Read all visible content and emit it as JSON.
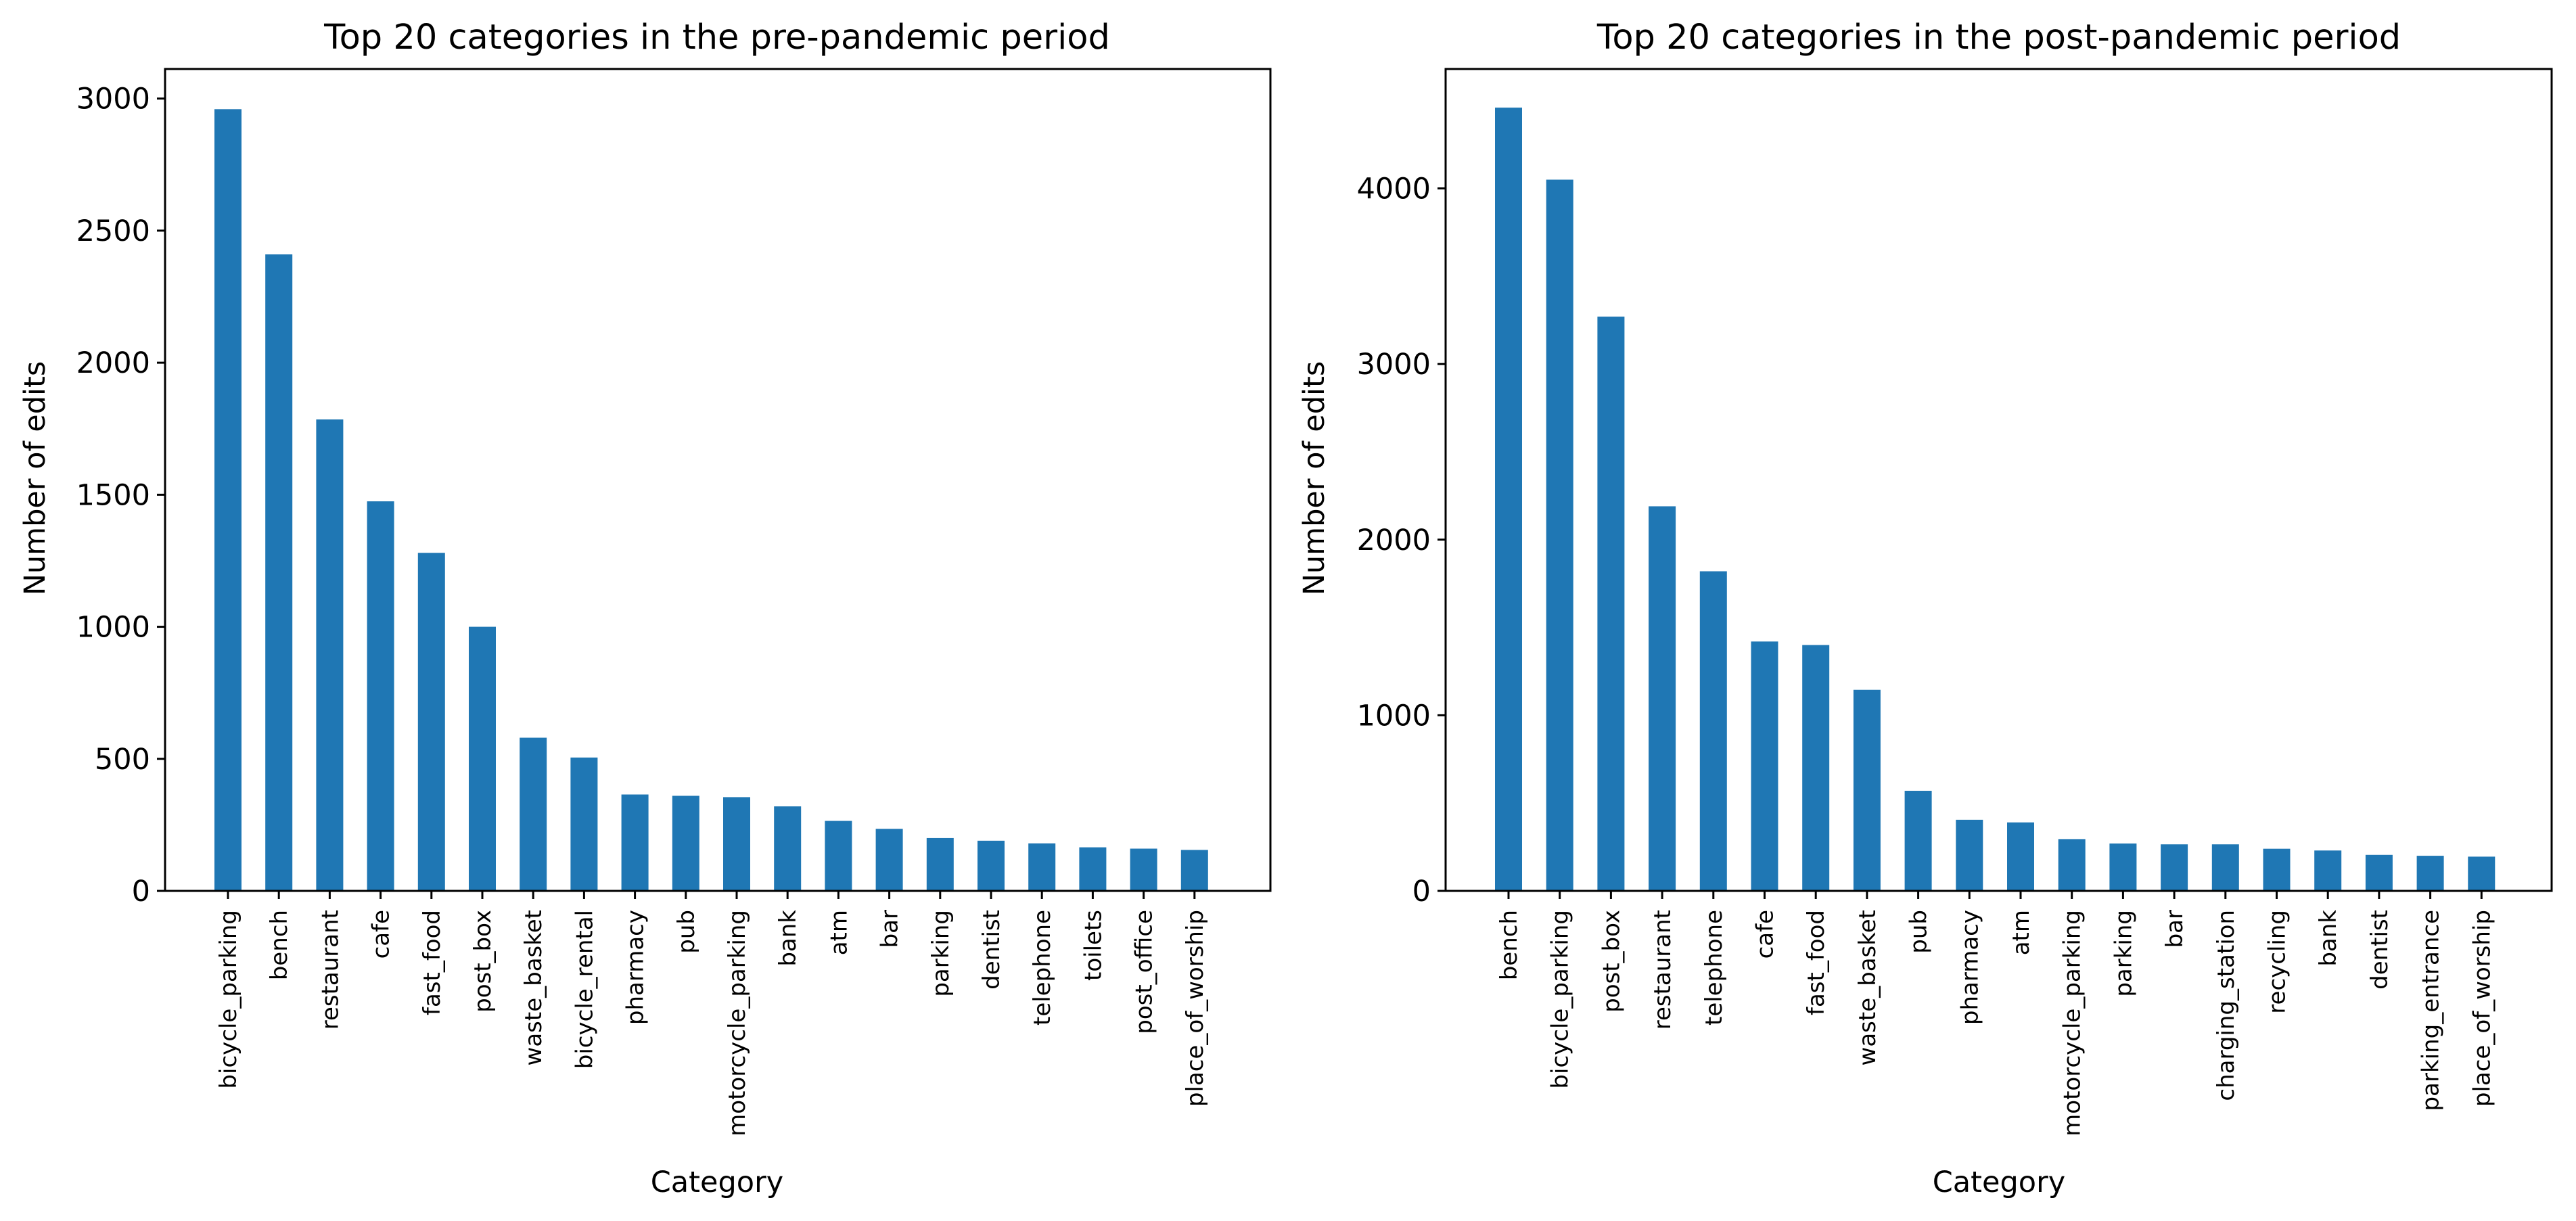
{
  "chart_data": [
    {
      "type": "bar",
      "title": "Top 20 categories in the pre-pandemic period",
      "xlabel": "Category",
      "ylabel": "Number of edits",
      "ylim": [
        0,
        3112
      ],
      "yticks": [
        0,
        500,
        1000,
        1500,
        2000,
        2500,
        3000
      ],
      "grid": false,
      "bar_color": "#1f77b4",
      "categories": [
        "bicycle_parking",
        "bench",
        "restaurant",
        "cafe",
        "fast_food",
        "post_box",
        "waste_basket",
        "bicycle_rental",
        "pharmacy",
        "pub",
        "motorcycle_parking",
        "bank",
        "atm",
        "bar",
        "parking",
        "dentist",
        "telephone",
        "toilets",
        "post_office",
        "place_of_worship"
      ],
      "values": [
        2960,
        2410,
        1785,
        1475,
        1280,
        1000,
        580,
        505,
        365,
        360,
        355,
        320,
        265,
        235,
        200,
        190,
        180,
        165,
        160,
        155
      ]
    },
    {
      "type": "bar",
      "title": "Top 20 categories in the post-pandemic period",
      "xlabel": "Category",
      "ylabel": "Number of edits",
      "ylim": [
        0,
        4680
      ],
      "yticks": [
        0,
        1000,
        2000,
        3000,
        4000
      ],
      "grid": false,
      "bar_color": "#1f77b4",
      "categories": [
        "bench",
        "bicycle_parking",
        "post_box",
        "restaurant",
        "telephone",
        "cafe",
        "fast_food",
        "waste_basket",
        "pub",
        "pharmacy",
        "atm",
        "motorcycle_parking",
        "parking",
        "bar",
        "charging_station",
        "recycling",
        "bank",
        "dentist",
        "parking_entrance",
        "place_of_worship"
      ],
      "values": [
        4460,
        4050,
        3270,
        2190,
        1820,
        1420,
        1400,
        1145,
        570,
        405,
        390,
        295,
        270,
        265,
        265,
        240,
        230,
        205,
        200,
        195
      ]
    }
  ]
}
